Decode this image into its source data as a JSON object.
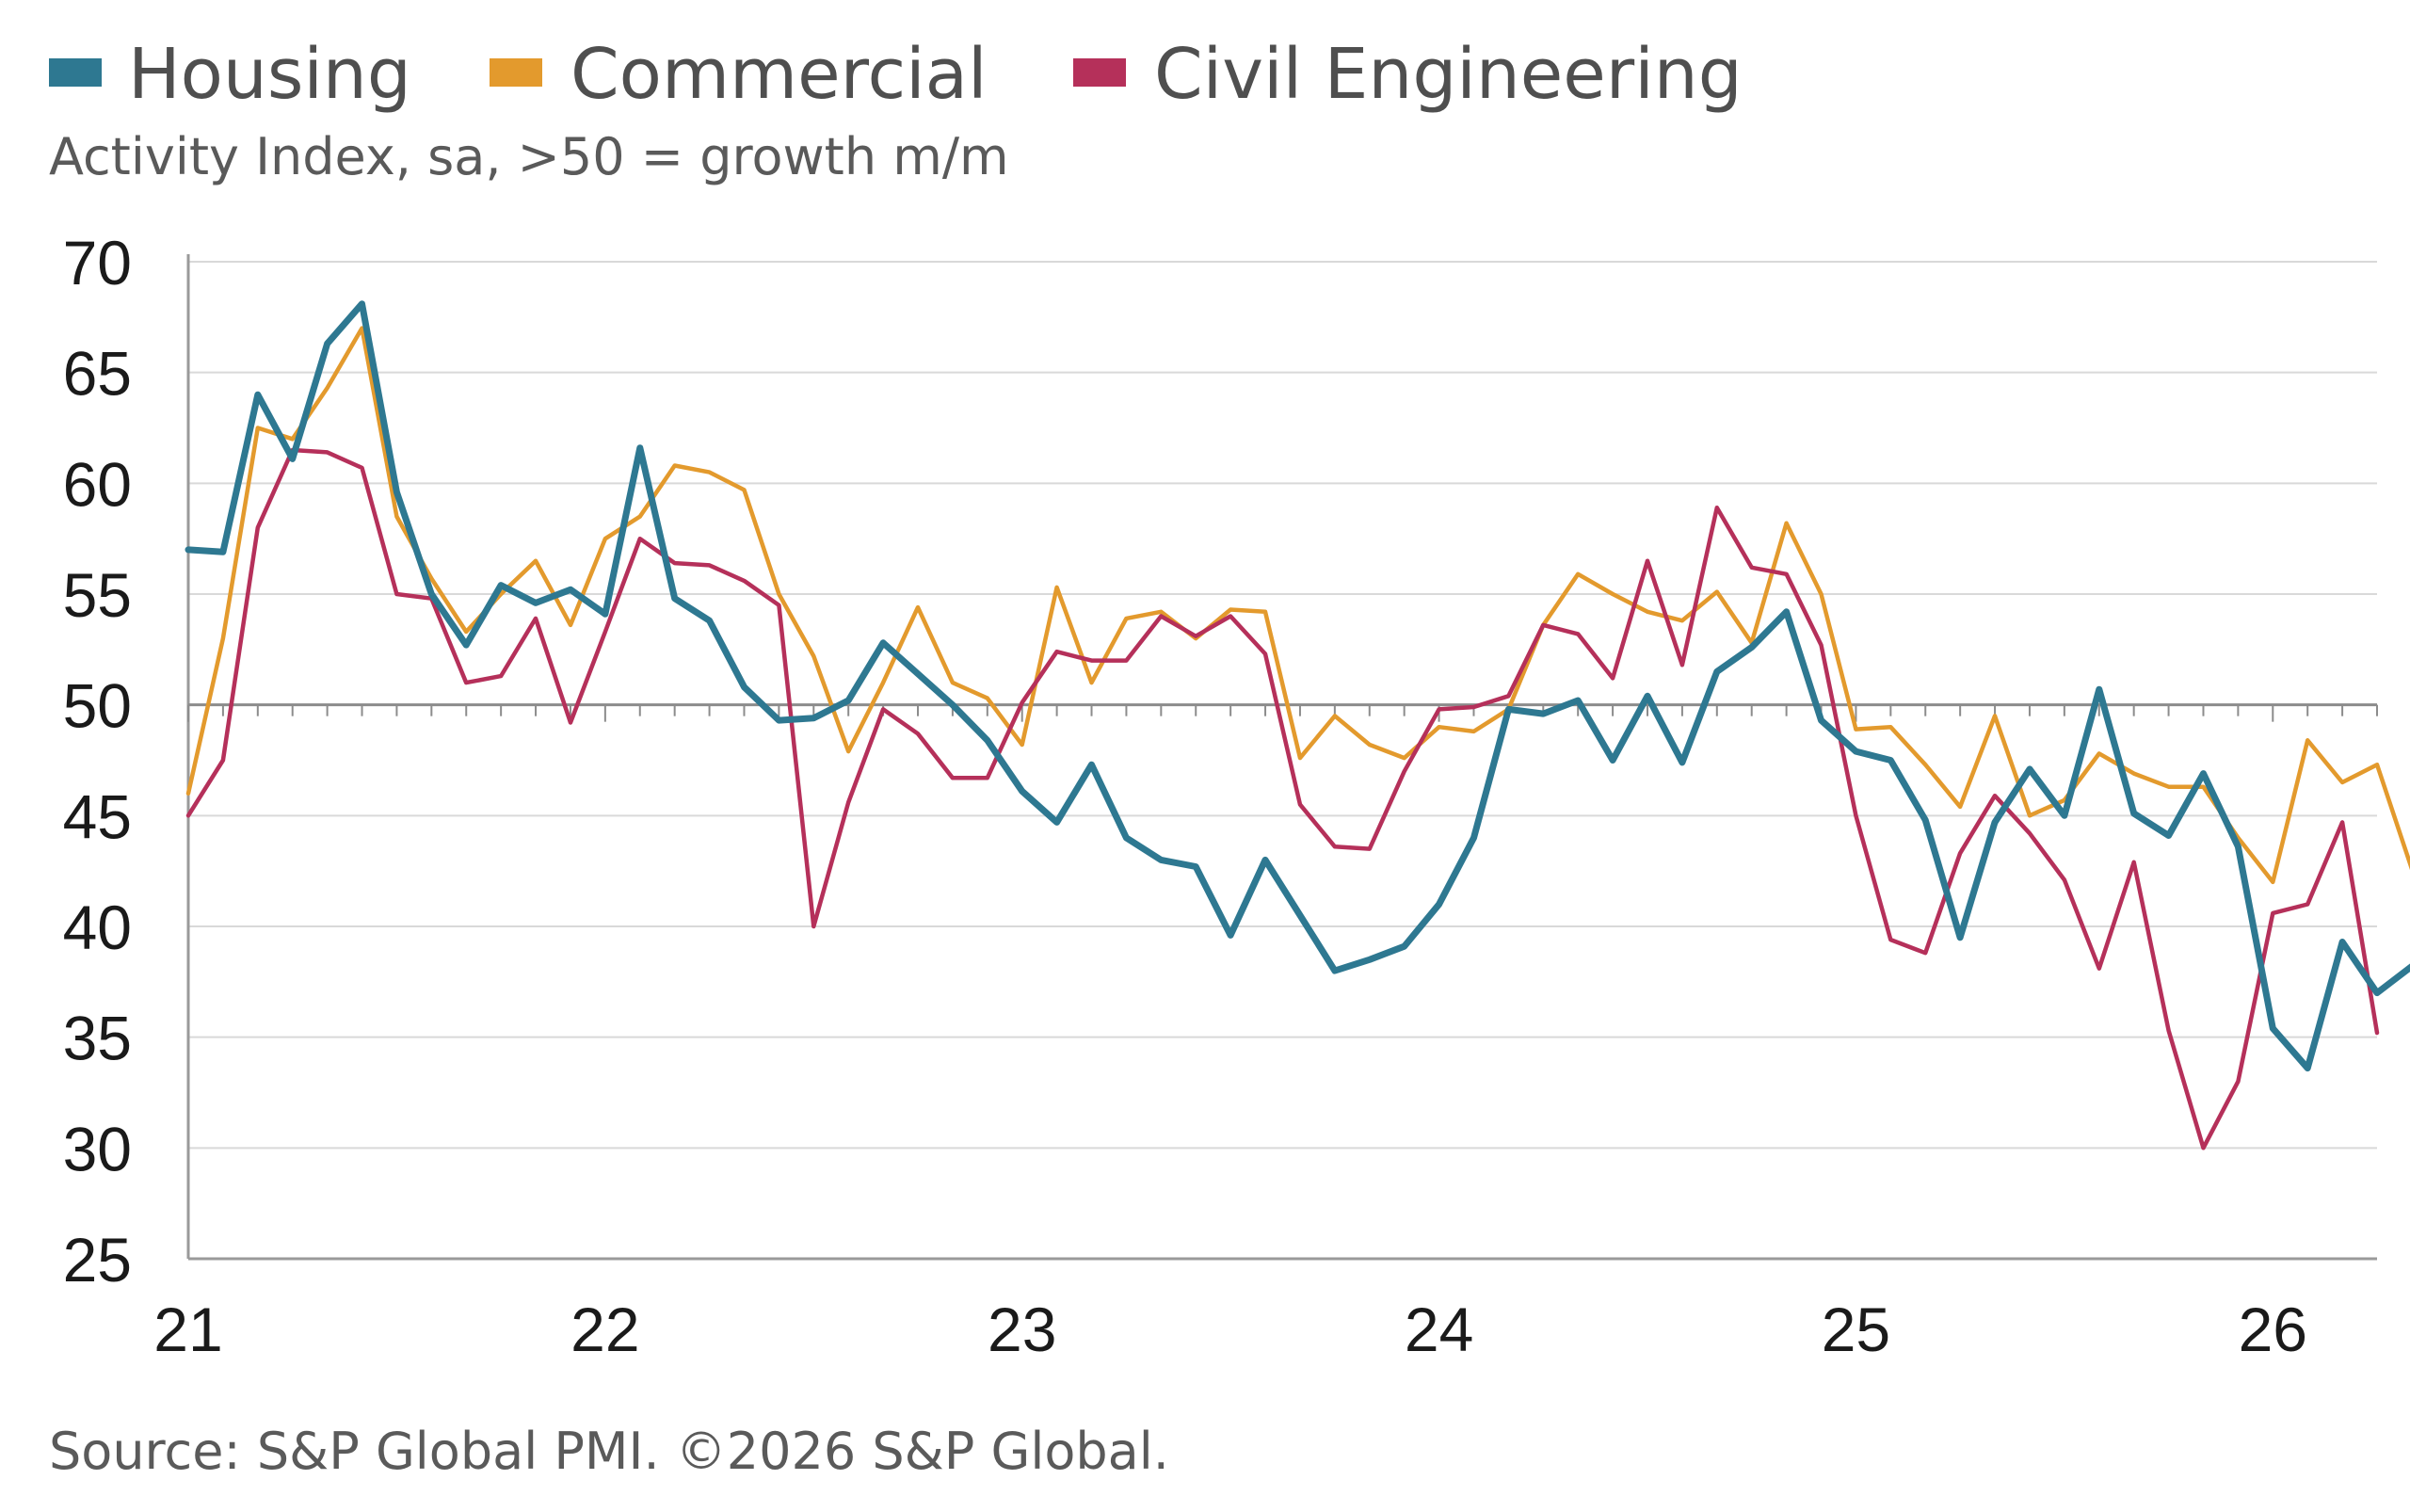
{
  "chart_data": {
    "type": "line",
    "subtitle": "Activity Index, sa, >50 = growth m/m",
    "source": "Source: S&P Global PMI. ©2026 S&P Global.",
    "ylim": [
      25,
      70
    ],
    "yticks": [
      "70",
      "65",
      "60",
      "55",
      "50",
      "45",
      "40",
      "35",
      "30",
      "25"
    ],
    "xticks": [
      "21",
      "22",
      "23",
      "24",
      "25",
      "26"
    ],
    "x_start": "2021-01",
    "reference_line": 50,
    "grid": true,
    "legend_position": "top-left",
    "series": [
      {
        "name": "Housing",
        "color": "#2e7891",
        "values": [
          57.0,
          56.9,
          64.0,
          61.1,
          66.3,
          68.1,
          59.6,
          55.0,
          52.7,
          55.4,
          54.6,
          55.2,
          54.1,
          61.6,
          54.8,
          53.8,
          50.8,
          49.3,
          49.4,
          50.2,
          52.8,
          51.4,
          50.0,
          48.4,
          46.1,
          44.7,
          47.3,
          44.0,
          43.0,
          42.7,
          39.6,
          43.0,
          40.5,
          38.0,
          38.5,
          39.1,
          41.0,
          44.0,
          49.8,
          49.6,
          50.2,
          47.5,
          50.4,
          47.4,
          51.5,
          52.6,
          54.2,
          49.3,
          47.9,
          47.5,
          44.8,
          39.5,
          44.7,
          47.1,
          45.0,
          50.7,
          45.1,
          44.1,
          46.9,
          43.6,
          35.4,
          33.6,
          39.3,
          37.0,
          38.2,
          38.8
        ]
      },
      {
        "name": "Commercial",
        "color": "#e39a2d",
        "values": [
          46.0,
          53.0,
          62.5,
          62.0,
          64.3,
          67.0,
          58.5,
          55.7,
          53.3,
          55.0,
          56.5,
          53.6,
          57.5,
          58.5,
          60.8,
          60.5,
          59.7,
          55.0,
          52.2,
          47.9,
          51.0,
          54.4,
          51.0,
          50.3,
          48.2,
          55.3,
          51.0,
          53.9,
          54.2,
          53.0,
          54.3,
          54.2,
          47.6,
          49.5,
          48.2,
          47.6,
          49.0,
          48.8,
          49.8,
          53.6,
          55.9,
          55.0,
          54.2,
          53.8,
          55.1,
          52.8,
          58.2,
          55.0,
          48.9,
          49.0,
          47.3,
          45.4,
          49.5,
          45.0,
          45.7,
          47.8,
          46.9,
          46.3,
          46.3,
          44.0,
          42.0,
          48.4,
          46.5,
          47.3,
          42.6
        ]
      },
      {
        "name": "Civil Engineering",
        "color": "#b5305a",
        "values": [
          45.0,
          47.5,
          58.0,
          61.5,
          61.4,
          60.7,
          55.0,
          54.8,
          51.0,
          51.3,
          53.9,
          49.2,
          53.3,
          57.5,
          56.4,
          56.3,
          55.6,
          54.5,
          40.0,
          45.6,
          49.8,
          48.7,
          46.7,
          46.7,
          50.1,
          52.4,
          52.0,
          52.0,
          54.0,
          53.1,
          54.0,
          52.3,
          45.5,
          43.6,
          43.5,
          47.0,
          49.8,
          49.9,
          50.4,
          53.6,
          53.2,
          51.2,
          56.5,
          51.8,
          58.9,
          56.2,
          55.9,
          52.7,
          45.0,
          39.4,
          38.8,
          43.3,
          45.9,
          44.2,
          42.1,
          38.1,
          42.9,
          35.3,
          30.0,
          33.0,
          40.6,
          41.0,
          44.7,
          35.2
        ]
      }
    ]
  }
}
